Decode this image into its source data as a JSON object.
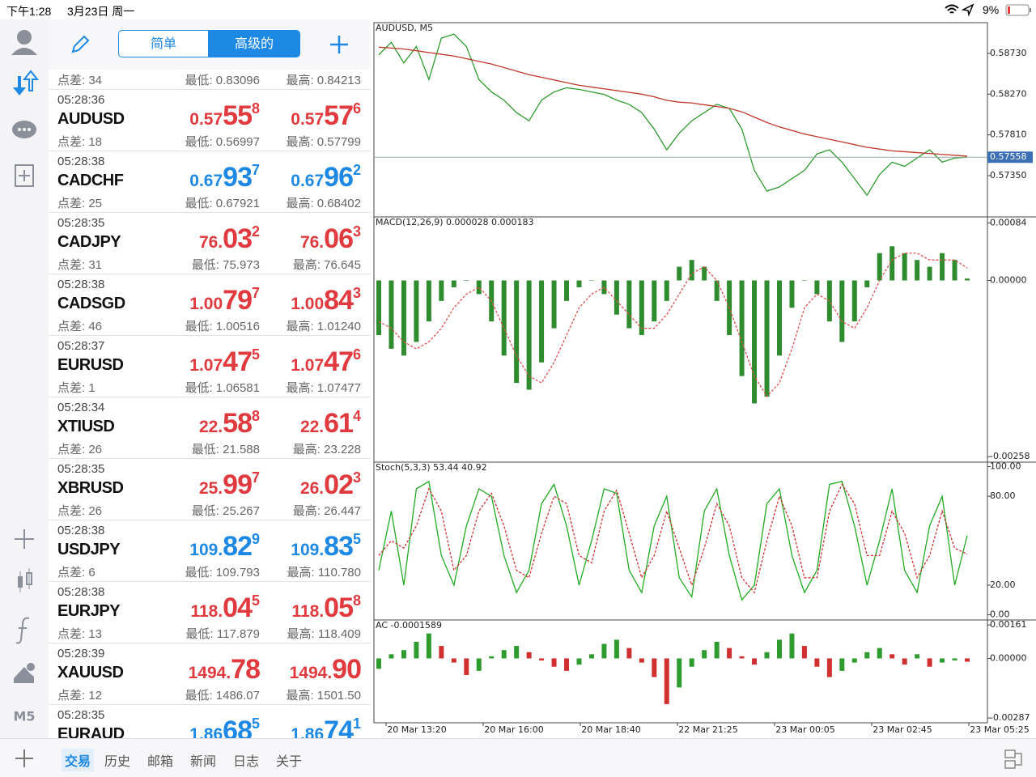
{
  "status_bar": {
    "time": "下午1:28",
    "date": "3月23日 周一",
    "battery": "9%"
  },
  "toolbar": {
    "tabs": [
      "简单",
      "高级的"
    ]
  },
  "sidebar": {
    "timeframe": "M5"
  },
  "partial_row": {
    "spread": "点差: 34",
    "low": "最低: 0.83096",
    "high": "最高: 0.84213"
  },
  "quotes": [
    {
      "time": "05:28:36",
      "symbol": "AUDUSD",
      "color": "#e0393e",
      "bid": {
        "head": "0.57",
        "big": "55",
        "sup": "8"
      },
      "ask": {
        "head": "0.57",
        "big": "57",
        "sup": "6"
      },
      "spread": "点差: 18",
      "low": "最低: 0.56997",
      "high": "最高: 0.57799"
    },
    {
      "time": "05:28:38",
      "symbol": "CADCHF",
      "color": "#1e88e5",
      "bid": {
        "head": "0.67",
        "big": "93",
        "sup": "7"
      },
      "ask": {
        "head": "0.67",
        "big": "96",
        "sup": "2"
      },
      "spread": "点差: 25",
      "low": "最低: 0.67921",
      "high": "最高: 0.68402"
    },
    {
      "time": "05:28:35",
      "symbol": "CADJPY",
      "color": "#e0393e",
      "bid": {
        "head": "76.",
        "big": "03",
        "sup": "2"
      },
      "ask": {
        "head": "76.",
        "big": "06",
        "sup": "3"
      },
      "spread": "点差: 31",
      "low": "最低: 75.973",
      "high": "最高: 76.645"
    },
    {
      "time": "05:28:38",
      "symbol": "CADSGD",
      "color": "#e0393e",
      "bid": {
        "head": "1.00",
        "big": "79",
        "sup": "7"
      },
      "ask": {
        "head": "1.00",
        "big": "84",
        "sup": "3"
      },
      "spread": "点差: 46",
      "low": "最低: 1.00516",
      "high": "最高: 1.01240"
    },
    {
      "time": "05:28:37",
      "symbol": "EURUSD",
      "color": "#e0393e",
      "bid": {
        "head": "1.07",
        "big": "47",
        "sup": "5"
      },
      "ask": {
        "head": "1.07",
        "big": "47",
        "sup": "6"
      },
      "spread": "点差: 1",
      "low": "最低: 1.06581",
      "high": "最高: 1.07477"
    },
    {
      "time": "05:28:34",
      "symbol": "XTIUSD",
      "color": "#e0393e",
      "bid": {
        "head": "22.",
        "big": "58",
        "sup": "8"
      },
      "ask": {
        "head": "22.",
        "big": "61",
        "sup": "4"
      },
      "spread": "点差: 26",
      "low": "最低: 21.588",
      "high": "最高: 23.228"
    },
    {
      "time": "05:28:35",
      "symbol": "XBRUSD",
      "color": "#e0393e",
      "bid": {
        "head": "25.",
        "big": "99",
        "sup": "7"
      },
      "ask": {
        "head": "26.",
        "big": "02",
        "sup": "3"
      },
      "spread": "点差: 26",
      "low": "最低: 25.267",
      "high": "最高: 26.447"
    },
    {
      "time": "05:28:38",
      "symbol": "USDJPY",
      "color": "#1e88e5",
      "bid": {
        "head": "109.",
        "big": "82",
        "sup": "9"
      },
      "ask": {
        "head": "109.",
        "big": "83",
        "sup": "5"
      },
      "spread": "点差: 6",
      "low": "最低: 109.793",
      "high": "最高: 110.780"
    },
    {
      "time": "05:28:38",
      "symbol": "EURJPY",
      "color": "#e0393e",
      "bid": {
        "head": "118.",
        "big": "04",
        "sup": "5"
      },
      "ask": {
        "head": "118.",
        "big": "05",
        "sup": "8"
      },
      "spread": "点差: 13",
      "low": "最低: 117.879",
      "high": "最高: 118.409"
    },
    {
      "time": "05:28:39",
      "symbol": "XAUUSD",
      "color": "#e0393e",
      "bid": {
        "head": "1494.",
        "big": "78"
      },
      "ask": {
        "head": "1494.",
        "big": "90"
      },
      "spread": "点差: 12",
      "low": "最低: 1486.07",
      "high": "最高: 1501.50"
    },
    {
      "time": "05:28:35",
      "symbol": "EURAUD",
      "color": "#1e88e5",
      "bid": {
        "head": "1.86",
        "big": "68",
        "sup": "5"
      },
      "ask": {
        "head": "1.86",
        "big": "74",
        "sup": "1"
      }
    }
  ],
  "bottom_tabs": [
    "交易",
    "历史",
    "邮箱",
    "新闻",
    "日志",
    "关于"
  ],
  "chart": {
    "x_labels": [
      "20 Mar 13:20",
      "20 Mar 16:00",
      "20 Mar 18:40",
      "22 Mar 21:25",
      "23 Mar 00:05",
      "23 Mar 02:45",
      "23 Mar 05:25"
    ],
    "price": {
      "title": "AUDUSD, M5",
      "ylim": [
        0.56884,
        0.59077
      ],
      "yticks": [
        {
          "value": 0.5873,
          "label": "0.58730"
        },
        {
          "value": 0.5827,
          "label": "0.58270"
        },
        {
          "value": 0.5781,
          "label": "0.57810"
        },
        {
          "value": 0.5735,
          "label": "0.57350"
        }
      ],
      "current": {
        "value": 0.57558,
        "label": "0.57558"
      },
      "series": [
        {
          "color": "#2e9b2e",
          "values": [
            0.58715,
            0.58855,
            0.58622,
            0.58808,
            0.58435,
            0.58902,
            0.58948,
            0.58808,
            0.58435,
            0.58295,
            0.58202,
            0.58062,
            0.57969,
            0.58202,
            0.58295,
            0.58342,
            0.58323,
            0.58295,
            0.58267,
            0.58202,
            0.58155,
            0.58062,
            0.57875,
            0.57642,
            0.57829,
            0.57969,
            0.58062,
            0.58155,
            0.58109,
            0.57875,
            0.57409,
            0.57176,
            0.57222,
            0.57316,
            0.57409,
            0.57595,
            0.57642,
            0.57502,
            0.57316,
            0.57129,
            0.57362,
            0.57502,
            0.57455,
            0.57549,
            0.57642,
            0.57502,
            0.57549,
            0.57558
          ]
        },
        {
          "color": "#c0392b",
          "values": [
            0.588,
            0.5879,
            0.5878,
            0.5876,
            0.5874,
            0.5872,
            0.587,
            0.5867,
            0.5864,
            0.5861,
            0.5857,
            0.5853,
            0.5849,
            0.5846,
            0.5843,
            0.584,
            0.5837,
            0.5835,
            0.5833,
            0.5831,
            0.5829,
            0.5827,
            0.5824,
            0.582,
            0.5818,
            0.5817,
            0.5815,
            0.5813,
            0.5811,
            0.5807,
            0.5801,
            0.5795,
            0.579,
            0.5786,
            0.5782,
            0.5779,
            0.5776,
            0.5773,
            0.577,
            0.5767,
            0.5765,
            0.5763,
            0.5762,
            0.5761,
            0.576,
            0.5759,
            0.5758,
            0.5757
          ]
        }
      ]
    },
    "macd": {
      "title": "MACD(12,26,9) 0.000028 0.000183",
      "ylim": [
        -0.00266,
        0.00093
      ],
      "yticks": [
        {
          "value": 0.00084,
          "label": "0.00084"
        },
        {
          "value": 0,
          "label": "0.00000"
        },
        {
          "value": -0.00258,
          "label": "-0.00258"
        }
      ],
      "histogram": {
        "color": "#2e8b2e",
        "values": [
          -0.0008,
          -0.001,
          -0.0011,
          -0.0009,
          -0.0006,
          -0.0003,
          -0.0001,
          0,
          -0.0002,
          -0.0006,
          -0.0011,
          -0.0015,
          -0.0016,
          -0.0012,
          -0.0007,
          -0.0003,
          -0.0001,
          0,
          -0.0002,
          -0.0005,
          -0.0007,
          -0.0008,
          -0.0006,
          -0.0003,
          0.0002,
          0.0003,
          0.0002,
          -0.0003,
          -0.0008,
          -0.0014,
          -0.0018,
          -0.0017,
          -0.0011,
          -0.0004,
          0,
          -0.0002,
          -0.0006,
          -0.0009,
          -0.0006,
          -0.0001,
          0.0004,
          0.0005,
          0.0004,
          0.0003,
          0.0002,
          0.0004,
          0.0003,
          2.8e-05
        ]
      },
      "signal": {
        "color": "#e05050",
        "values": [
          -0.0006,
          -0.0007,
          -0.0009,
          -0.001,
          -0.0009,
          -0.0007,
          -0.0004,
          -0.0002,
          -0.0001,
          -0.0003,
          -0.0007,
          -0.0011,
          -0.0014,
          -0.0015,
          -0.0012,
          -0.0008,
          -0.0004,
          -0.0002,
          -0.0001,
          -0.0003,
          -0.0005,
          -0.0007,
          -0.0007,
          -0.0005,
          -0.0002,
          0.0001,
          0.0002,
          0,
          -0.0004,
          -0.0009,
          -0.0014,
          -0.0017,
          -0.0015,
          -0.001,
          -0.0004,
          -0.0002,
          -0.0003,
          -0.0006,
          -0.0007,
          -0.0004,
          0,
          0.0003,
          0.0004,
          0.0004,
          0.0003,
          0.0003,
          0.0003,
          0.000183
        ]
      }
    },
    "stoch": {
      "title": "Stoch(5,3,3) 53.44 40.92",
      "ylim": [
        -3.5,
        103
      ],
      "yticks": [
        {
          "value": 100,
          "label": "100.00"
        },
        {
          "value": 80,
          "label": "80.00"
        },
        {
          "value": 20,
          "label": "20.00"
        },
        {
          "value": 0,
          "label": "0.00"
        }
      ],
      "main": {
        "color": "#22aa22",
        "values": [
          30,
          70,
          20,
          85,
          90,
          40,
          20,
          60,
          85,
          80,
          40,
          15,
          30,
          75,
          88,
          60,
          20,
          50,
          85,
          82,
          30,
          15,
          60,
          80,
          25,
          12,
          70,
          85,
          40,
          10,
          20,
          75,
          85,
          40,
          15,
          30,
          88,
          90,
          60,
          20,
          50,
          85,
          30,
          15,
          60,
          80,
          20,
          53.44
        ]
      },
      "signal": {
        "color": "#d03030",
        "values": [
          40,
          50,
          45,
          60,
          85,
          70,
          30,
          40,
          70,
          82,
          60,
          30,
          25,
          55,
          80,
          75,
          40,
          35,
          70,
          84,
          55,
          25,
          40,
          70,
          45,
          20,
          45,
          75,
          60,
          25,
          15,
          50,
          80,
          60,
          25,
          25,
          70,
          88,
          75,
          40,
          40,
          70,
          55,
          25,
          40,
          70,
          45,
          40.92
        ]
      }
    },
    "ac": {
      "title": "AC -0.0001589",
      "ylim": [
        -0.0031,
        0.00185
      ],
      "up_color": "#2e9b2e",
      "down_color": "#d03030",
      "yticks": [
        {
          "value": 0.00161,
          "label": "0.00161"
        },
        {
          "value": 0,
          "label": "0.00000"
        },
        {
          "value": -0.00287,
          "label": "-0.00287"
        }
      ],
      "values": [
        -0.0005,
        0.0002,
        0.0004,
        0.0008,
        0.0012,
        0.0006,
        -0.0002,
        -0.0008,
        -0.0006,
        0.0001,
        0.0004,
        0.0006,
        0.0003,
        -0.0001,
        -0.0004,
        -0.0006,
        -0.0003,
        0.0002,
        0.0007,
        0.0009,
        0.0005,
        -0.0002,
        -0.0009,
        -0.0022,
        -0.0014,
        -0.0004,
        0.0004,
        0.0008,
        0.0005,
        0.0001,
        -0.0003,
        0.0003,
        0.0009,
        0.0012,
        0.0006,
        -0.0004,
        -0.0009,
        -0.0006,
        -0.0002,
        0.0003,
        0.0005,
        0.0002,
        -0.0003,
        0.0002,
        -0.0004,
        -0.0002,
        -0.0001,
        -0.0001589
      ]
    }
  }
}
